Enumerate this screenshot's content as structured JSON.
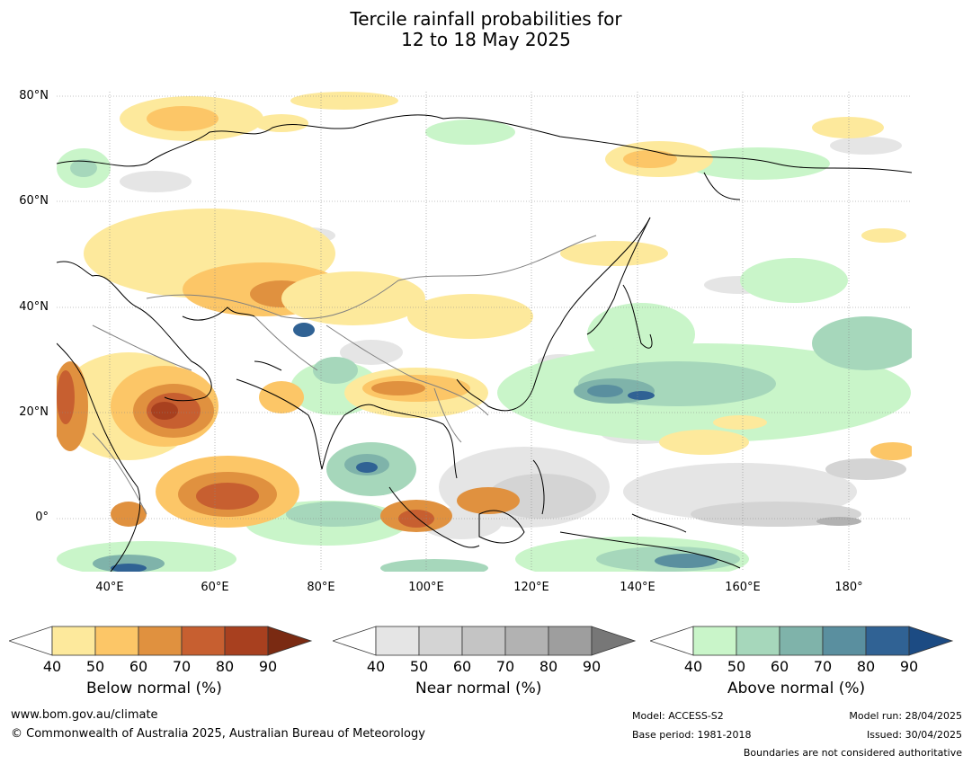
{
  "title": {
    "line1": "Tercile rainfall probabilities for",
    "line2": "12 to 18 May 2025"
  },
  "map": {
    "lat_labels": [
      "80°N",
      "60°N",
      "40°N",
      "20°N",
      "0°"
    ],
    "lon_labels": [
      "40°E",
      "60°E",
      "80°E",
      "100°E",
      "120°E",
      "140°E",
      "160°E",
      "180°"
    ],
    "lat_range": [
      -10,
      81
    ],
    "lon_range": [
      30,
      192
    ],
    "gridlines": true
  },
  "colorbars": [
    {
      "caption": "Below normal (%)",
      "ticks": [
        "40",
        "50",
        "60",
        "70",
        "80",
        "90"
      ],
      "colors": [
        "#ffffff",
        "#fde99c",
        "#fcc667",
        "#e0913f",
        "#c75f30",
        "#a8401f",
        "#7a2a12"
      ]
    },
    {
      "caption": "Near normal (%)",
      "ticks": [
        "40",
        "50",
        "60",
        "70",
        "80",
        "90"
      ],
      "colors": [
        "#ffffff",
        "#e5e5e5",
        "#d4d4d4",
        "#c4c4c4",
        "#b2b2b2",
        "#9e9e9e",
        "#777777"
      ]
    },
    {
      "caption": "Above normal (%)",
      "ticks": [
        "40",
        "50",
        "60",
        "70",
        "80",
        "90"
      ],
      "colors": [
        "#ffffff",
        "#c9f5c9",
        "#a6d7bb",
        "#7fb3aa",
        "#5a8f9f",
        "#306294",
        "#1c4b83"
      ]
    }
  ],
  "footer": {
    "website": "www.bom.gov.au/climate",
    "copyright": "© Commonwealth of Australia 2025, Australian Bureau of Meteorology",
    "model": "Model: ACCESS-S2",
    "base_period": "Base period: 1981-2018",
    "model_run": "Model run: 28/04/2025",
    "issued": "Issued: 30/04/2025",
    "disclaimer": "Boundaries are not considered authoritative"
  }
}
